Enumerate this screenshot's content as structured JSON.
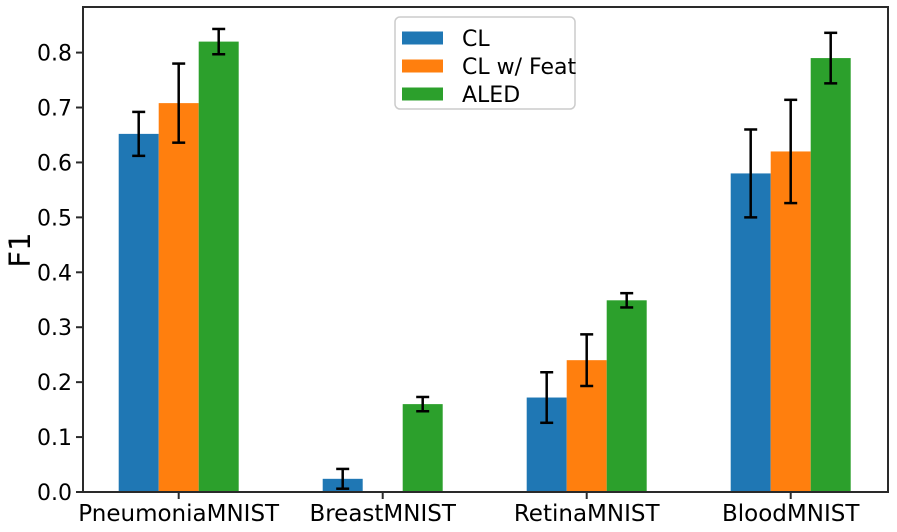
{
  "figure": {
    "background": "#ffffff",
    "axis_color": "#2a2a2a",
    "text_color": "#000000",
    "error_bar_color": "#000000",
    "legend_border_color": "#cccccc",
    "legend_background": "#ffffff"
  },
  "chart_data": {
    "type": "bar",
    "title": "",
    "xlabel": "",
    "ylabel": "F1",
    "categories": [
      "PneumoniaMNIST",
      "BreastMNIST",
      "RetinaMNIST",
      "BloodMNIST"
    ],
    "series": [
      {
        "name": "CL",
        "color": "#1f77b4",
        "values": [
          0.652,
          0.024,
          0.172,
          0.58
        ],
        "errors": [
          0.04,
          0.018,
          0.046,
          0.08
        ]
      },
      {
        "name": "CL w/ Feat",
        "color": "#ff7f0e",
        "values": [
          0.708,
          0.0,
          0.24,
          0.62
        ],
        "errors": [
          0.072,
          0.0,
          0.047,
          0.094
        ]
      },
      {
        "name": "ALED",
        "color": "#2ca02c",
        "values": [
          0.82,
          0.16,
          0.349,
          0.79
        ],
        "errors": [
          0.023,
          0.013,
          0.013,
          0.046
        ]
      }
    ],
    "yticks": [
      0.0,
      0.1,
      0.2,
      0.3,
      0.4,
      0.5,
      0.6,
      0.7,
      0.8
    ],
    "ytick_labels": [
      "0.0",
      "0.1",
      "0.2",
      "0.3",
      "0.4",
      "0.5",
      "0.6",
      "0.7",
      "0.8"
    ],
    "ylim": [
      0,
      0.883
    ],
    "grid": false,
    "error_bars": true,
    "legend": {
      "position": "upper center",
      "entries": [
        "CL",
        "CL w/ Feat",
        "ALED"
      ]
    }
  }
}
